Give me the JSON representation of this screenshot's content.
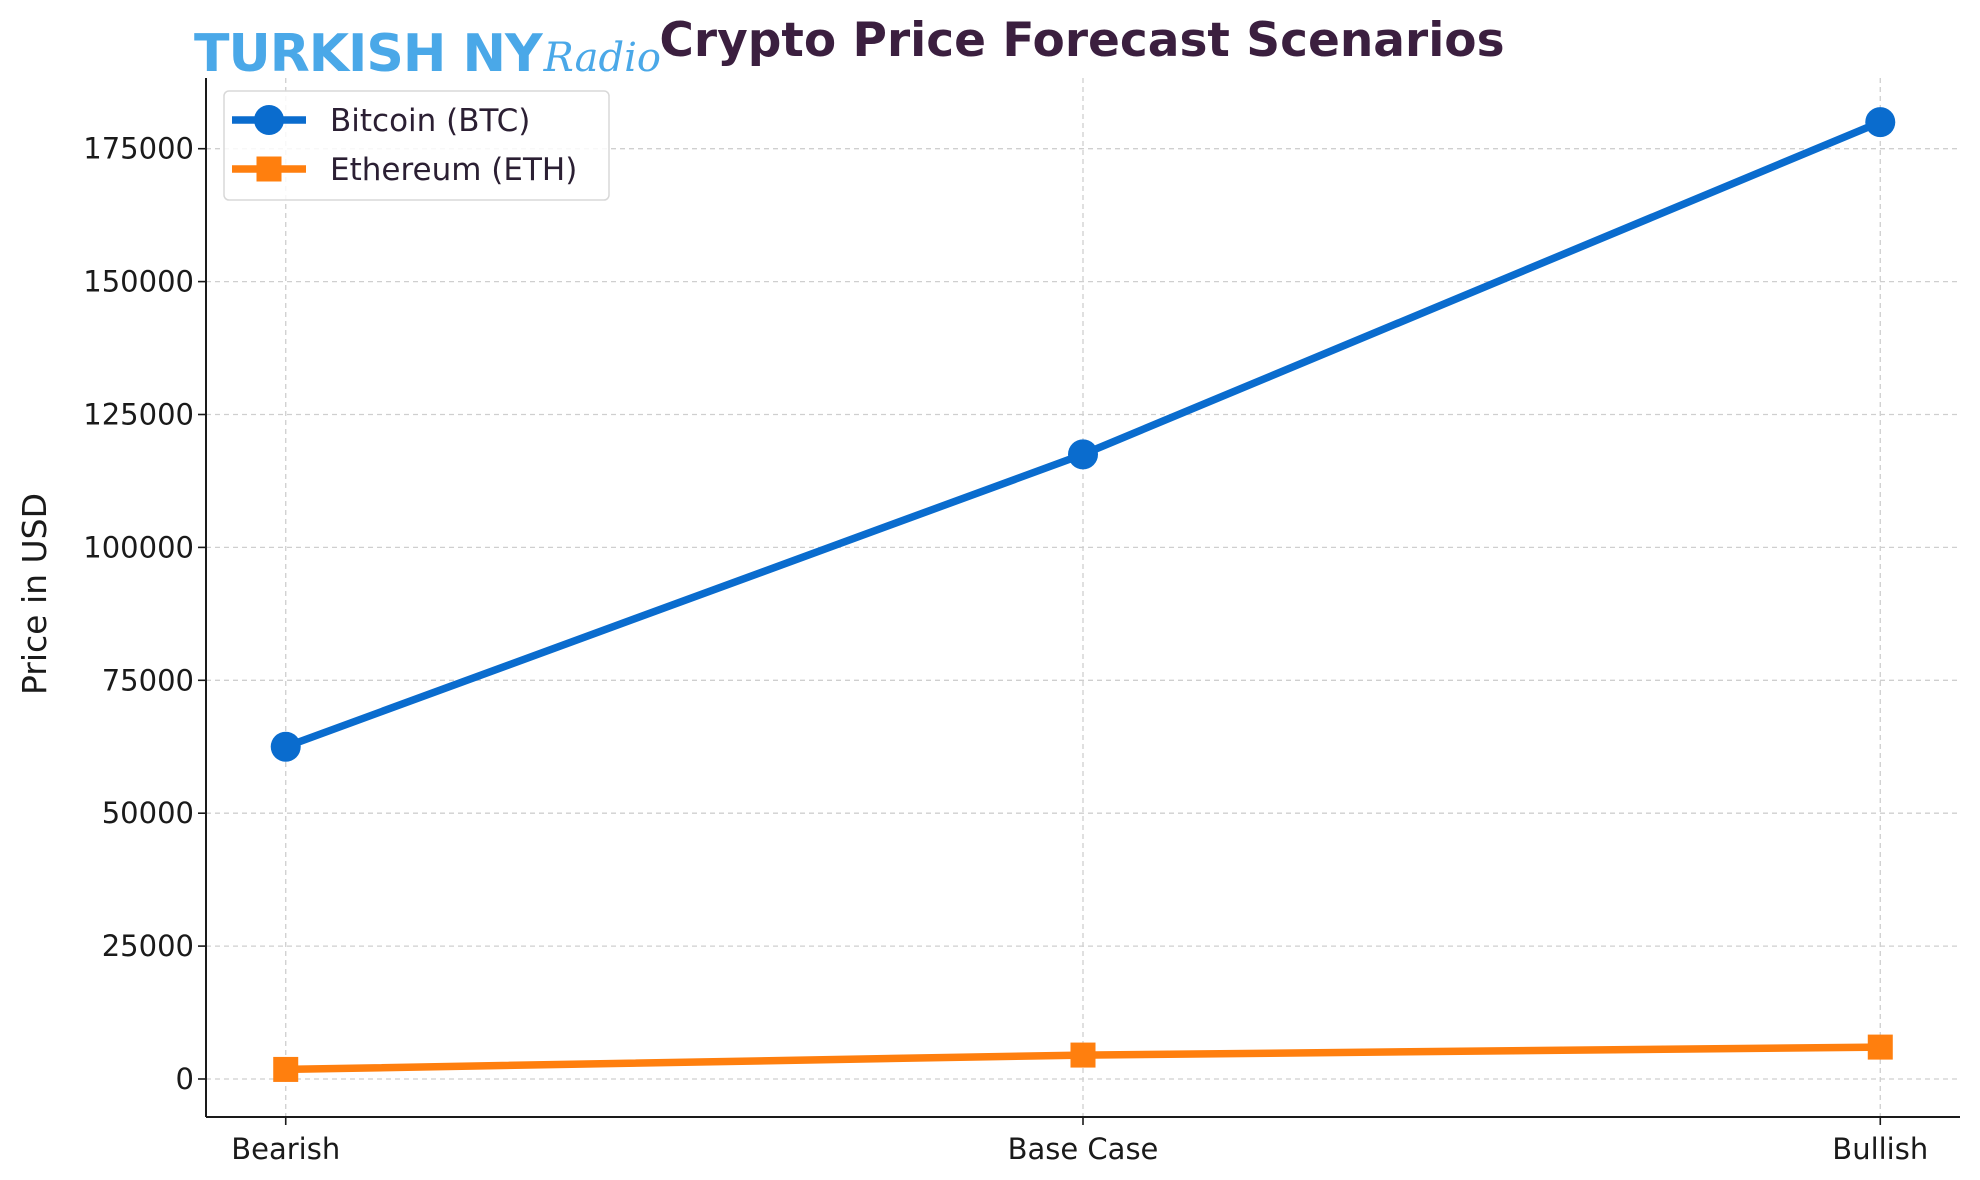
{
  "watermark": {
    "main": "TURKISH NY",
    "script": "Radio",
    "color": "#4aa8e8"
  },
  "chart_data": {
    "type": "line",
    "title": "Crypto Price Forecast Scenarios",
    "xlabel": "",
    "ylabel": "Price in USD",
    "categories": [
      "Bearish",
      "Base Case",
      "Bullish"
    ],
    "series": [
      {
        "name": "Bitcoin (BTC)",
        "values": [
          62500,
          117500,
          180000
        ],
        "color": "#0a6cce",
        "marker": "circle"
      },
      {
        "name": "Ethereum (ETH)",
        "values": [
          1800,
          4500,
          6000
        ],
        "color": "#ff7f0e",
        "marker": "square"
      }
    ],
    "yticks": [
      0,
      25000,
      50000,
      75000,
      100000,
      125000,
      150000,
      175000
    ],
    "ylim": [
      -7150,
      188300
    ],
    "xlim": [
      -0.1,
      2.1
    ],
    "grid": true,
    "legend": "top-left"
  }
}
